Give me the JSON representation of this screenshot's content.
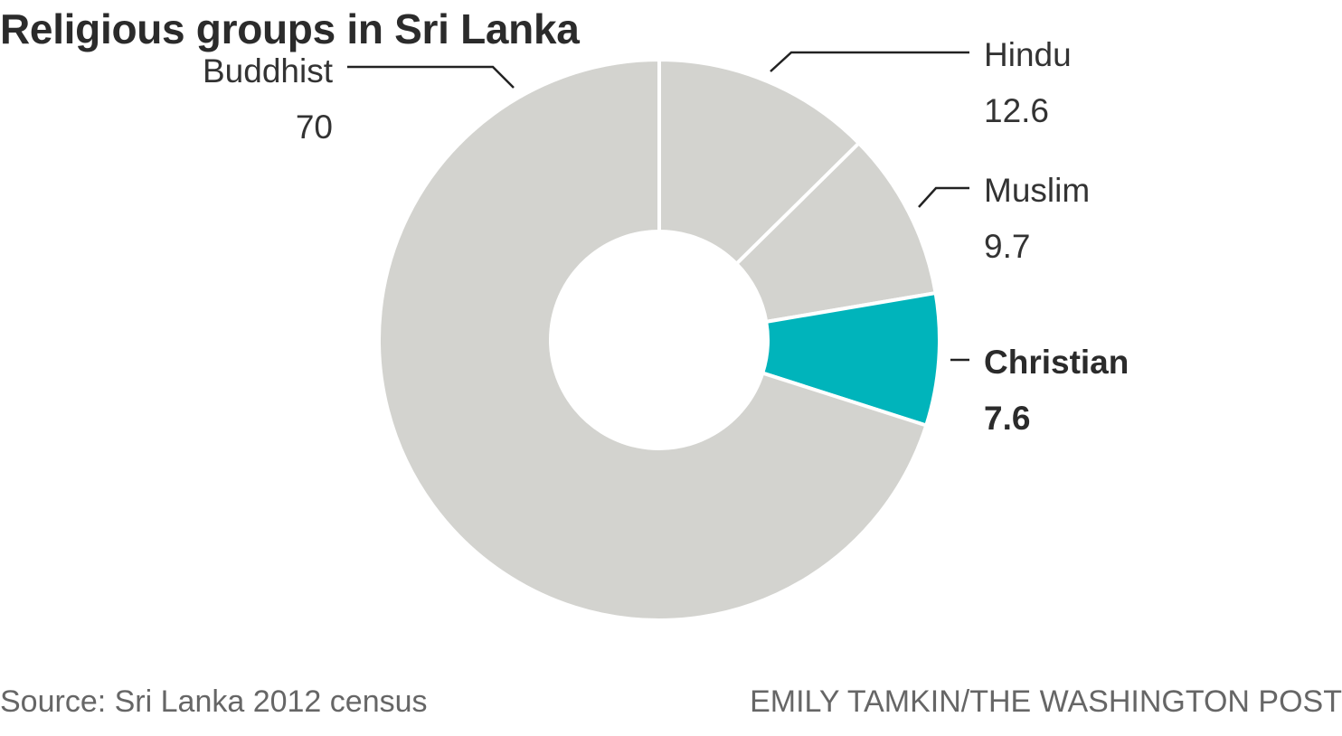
{
  "title": "Religious groups in Sri Lanka",
  "chart_data": {
    "type": "pie",
    "title": "Religious groups in Sri Lanka",
    "donut": true,
    "categories": [
      "Hindu",
      "Muslim",
      "Christian",
      "Buddhist"
    ],
    "values": [
      12.6,
      9.7,
      7.6,
      70
    ],
    "value_labels": [
      "12.6",
      "9.7",
      "7.6",
      "70"
    ],
    "highlight": "Christian",
    "colors": {
      "default": "#d3d3cf",
      "highlight": "#00b4bb",
      "separator": "#ffffff"
    }
  },
  "footer": {
    "source": "Source: Sri Lanka 2012 census",
    "credit": "EMILY TAMKIN/THE WASHINGTON POST"
  }
}
